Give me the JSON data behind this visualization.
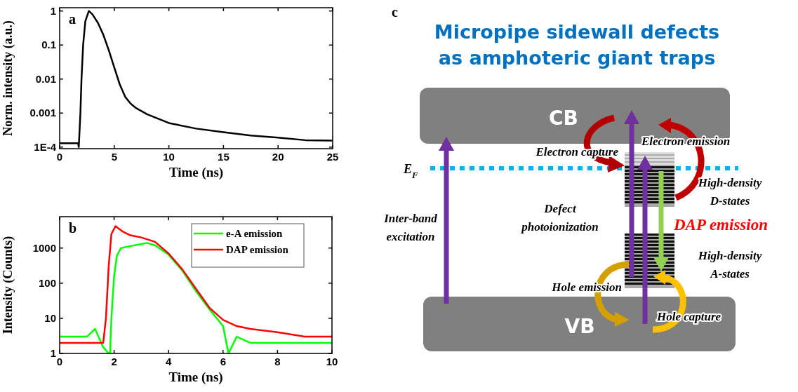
{
  "chart_data": [
    {
      "type": "line",
      "xlabel": "Time (ns)",
      "ylabel": "Norm. intensity (a.u.)",
      "annotations": [
        "a"
      ],
      "log": "y",
      "xlim": [
        0,
        25
      ],
      "ylim": [
        9e-05,
        1.25
      ],
      "xticks": [
        0,
        5,
        10,
        15,
        20,
        25
      ],
      "yticks": [
        {
          "value": 0.0001,
          "label": "1E-4"
        },
        0.001,
        0.01,
        0.1,
        1
      ],
      "line_style": "solid",
      "series": [
        {
          "color": "#000000",
          "x": [
            0,
            0.5,
            1,
            1.5,
            1.7,
            1.75,
            1.9,
            2.0,
            2.15,
            2.35,
            2.67,
            3.0,
            3.5,
            4.0,
            4.5,
            5,
            5.5,
            6,
            6.5,
            7,
            8,
            10,
            12.5,
            15,
            17.5,
            20,
            22.5,
            25
          ],
          "values": [
            0.00013,
            0.00013,
            0.00013,
            0.00013,
            0.00013,
            0.0001,
            0.001,
            0.01,
            0.1,
            0.5,
            1,
            0.8,
            0.45,
            0.2,
            0.07,
            0.022,
            0.007,
            0.003,
            0.0019,
            0.0014,
            0.00093,
            0.00051,
            0.00035,
            0.000275,
            0.00022,
            0.00019,
            0.00016,
            0.000155
          ]
        }
      ]
    },
    {
      "type": "line",
      "xlabel": "Time (ns)",
      "ylabel": "Intensity (Counts)",
      "annotations": [
        "b"
      ],
      "log": "y",
      "xlim": [
        0,
        10
      ],
      "ylim": [
        1,
        7800
      ],
      "xticks": [
        0,
        2,
        4,
        6,
        8,
        10
      ],
      "yticks": [
        1,
        10,
        100,
        1000
      ],
      "legend": "top right",
      "line_style": "solid",
      "series": [
        {
          "name": "e-A emission",
          "color": "#00ff00",
          "x": [
            0,
            0.5,
            1,
            1.3,
            1.6,
            1.8,
            1.85,
            1.9,
            2.0,
            2.1,
            2.25,
            2.5,
            3.0,
            3.2,
            3.5,
            4.0,
            4.5,
            5.0,
            5.5,
            6.0,
            6.2,
            6.5,
            7,
            8,
            9,
            10
          ],
          "values": [
            3,
            3,
            3,
            5,
            1.5,
            1,
            1,
            10,
            160,
            600,
            1000,
            1100,
            1300,
            1400,
            1200,
            650,
            230,
            60,
            18,
            6,
            1,
            3,
            2,
            2,
            2,
            2
          ]
        },
        {
          "name": "DAP emission",
          "color": "#ff0000",
          "x": [
            0,
            0.5,
            1,
            1.6,
            1.7,
            1.8,
            1.9,
            2.05,
            2.3,
            2.6,
            3.0,
            3.5,
            4.0,
            4.5,
            5.0,
            5.5,
            6.0,
            6.5,
            7,
            8,
            9,
            10
          ],
          "values": [
            2,
            2,
            2,
            2,
            10,
            300,
            2500,
            4200,
            3000,
            2300,
            2000,
            1500,
            700,
            250,
            70,
            20,
            9,
            6,
            5,
            4,
            3,
            3
          ]
        }
      ]
    },
    {
      "type": "other",
      "title": "Micropipe sidewall defects as amphoteric giant traps",
      "annotations": [
        "c",
        "CB",
        "VB",
        "E$_{F}$",
        "Electron capture",
        "Electron emission",
        "High-density D-states",
        "Inter-band excitation",
        "Defect photoionization",
        "DAP emission",
        "High-density A-states",
        "Hole emission",
        "Hole capture"
      ]
    }
  ]
}
